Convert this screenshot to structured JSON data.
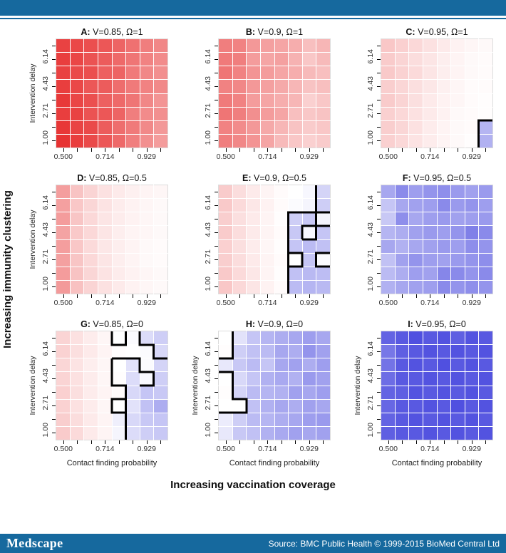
{
  "branding": {
    "logo": "Medscape",
    "source": "Source: BMC Public Health © 1999-2015 BioMed Central Ltd",
    "bar_color": "#16699E"
  },
  "figure": {
    "outer_y_label": "Increasing immunity clustering",
    "outer_x_label": "Increasing vaccination coverage",
    "y_axis_title": "Intervention delay",
    "x_axis_title": "Contact finding probability",
    "x_tick_labels": [
      "0.500",
      "0.714",
      "0.929"
    ],
    "y_tick_labels": [
      "1.00",
      "2.71",
      "4.43",
      "6.14"
    ],
    "pos_color": "#E62828",
    "neg_color": "#3C3CDC",
    "contour_color": "#000000"
  },
  "chart_data": {
    "type": "heatmap",
    "grid": "8x8 cells per panel",
    "x_values": [
      0.5,
      0.571,
      0.643,
      0.714,
      0.786,
      0.857,
      0.929,
      1.0
    ],
    "y_values": [
      1.0,
      1.86,
      2.71,
      3.57,
      4.43,
      5.29,
      6.14,
      7.0
    ],
    "value_legend": "positive = red (outbreak advantage), negative = blue; rows listed top (delay 7.00) to bottom (delay 1.00)",
    "panels": [
      {
        "id": "A",
        "title_prefix": "A:",
        "title_rest": " V=0.85, Ω=1",
        "V": 0.85,
        "omega": 1,
        "show_y_title": true,
        "show_x_title": false,
        "values": [
          [
            0.88,
            0.85,
            0.82,
            0.78,
            0.72,
            0.66,
            0.6,
            0.56
          ],
          [
            0.9,
            0.86,
            0.8,
            0.76,
            0.7,
            0.64,
            0.58,
            0.54
          ],
          [
            0.88,
            0.84,
            0.82,
            0.74,
            0.72,
            0.62,
            0.56,
            0.52
          ],
          [
            0.9,
            0.85,
            0.78,
            0.76,
            0.68,
            0.62,
            0.58,
            0.55
          ],
          [
            0.92,
            0.86,
            0.82,
            0.74,
            0.7,
            0.64,
            0.56,
            0.5
          ],
          [
            0.9,
            0.88,
            0.8,
            0.78,
            0.72,
            0.6,
            0.54,
            0.52
          ],
          [
            0.93,
            0.87,
            0.84,
            0.76,
            0.68,
            0.62,
            0.55,
            0.48
          ],
          [
            0.95,
            0.9,
            0.84,
            0.78,
            0.7,
            0.6,
            0.52,
            0.46
          ]
        ],
        "contours": []
      },
      {
        "id": "B",
        "title_prefix": "B:",
        "title_rest": " V=0.9, Ω=1",
        "V": 0.9,
        "omega": 1,
        "show_y_title": false,
        "show_x_title": false,
        "values": [
          [
            0.6,
            0.58,
            0.48,
            0.44,
            0.42,
            0.38,
            0.3,
            0.34
          ],
          [
            0.62,
            0.6,
            0.46,
            0.42,
            0.44,
            0.36,
            0.26,
            0.32
          ],
          [
            0.64,
            0.58,
            0.5,
            0.46,
            0.42,
            0.38,
            0.32,
            0.3
          ],
          [
            0.58,
            0.56,
            0.48,
            0.44,
            0.4,
            0.34,
            0.28,
            0.3
          ],
          [
            0.62,
            0.58,
            0.46,
            0.42,
            0.38,
            0.34,
            0.22,
            0.26
          ],
          [
            0.64,
            0.6,
            0.52,
            0.46,
            0.42,
            0.3,
            0.26,
            0.28
          ],
          [
            0.58,
            0.54,
            0.48,
            0.4,
            0.34,
            0.28,
            0.24,
            0.26
          ],
          [
            0.6,
            0.56,
            0.5,
            0.42,
            0.32,
            0.26,
            0.22,
            0.24
          ]
        ],
        "contours": []
      },
      {
        "id": "C",
        "title_prefix": "C:",
        "title_rest": " V=0.95, Ω=1",
        "V": 0.95,
        "omega": 1,
        "show_y_title": false,
        "show_x_title": false,
        "values": [
          [
            0.26,
            0.22,
            0.18,
            0.14,
            0.1,
            0.06,
            0.04,
            0.03
          ],
          [
            0.24,
            0.2,
            0.16,
            0.12,
            0.08,
            0.05,
            0.03,
            0.02
          ],
          [
            0.25,
            0.21,
            0.17,
            0.12,
            0.08,
            0.05,
            0.03,
            0.02
          ],
          [
            0.23,
            0.19,
            0.15,
            0.11,
            0.07,
            0.04,
            0.02,
            0.02
          ],
          [
            0.24,
            0.2,
            0.15,
            0.1,
            0.06,
            0.04,
            0.02,
            0.01
          ],
          [
            0.22,
            0.18,
            0.14,
            0.1,
            0.06,
            0.03,
            0.02,
            0.01
          ],
          [
            0.23,
            0.19,
            0.14,
            0.09,
            0.05,
            0.03,
            0.02,
            -0.38
          ],
          [
            0.22,
            0.18,
            0.13,
            0.09,
            0.05,
            0.03,
            0.01,
            -0.4
          ]
        ],
        "contours": [
          [
            [
              7,
              0
            ],
            [
              7,
              2
            ],
            [
              8,
              2
            ]
          ]
        ]
      },
      {
        "id": "D",
        "title_prefix": "D:",
        "title_rest": " V=0.85, Ω=0.5",
        "V": 0.85,
        "omega": 0.5,
        "show_y_title": true,
        "show_x_title": false,
        "values": [
          [
            0.45,
            0.28,
            0.2,
            0.14,
            0.1,
            0.07,
            0.05,
            0.04
          ],
          [
            0.44,
            0.26,
            0.19,
            0.13,
            0.09,
            0.06,
            0.04,
            0.03
          ],
          [
            0.46,
            0.27,
            0.18,
            0.12,
            0.09,
            0.06,
            0.04,
            0.03
          ],
          [
            0.43,
            0.25,
            0.18,
            0.12,
            0.08,
            0.05,
            0.04,
            0.03
          ],
          [
            0.45,
            0.26,
            0.17,
            0.11,
            0.08,
            0.05,
            0.03,
            0.02
          ],
          [
            0.44,
            0.27,
            0.18,
            0.12,
            0.08,
            0.05,
            0.03,
            0.02
          ],
          [
            0.46,
            0.28,
            0.19,
            0.13,
            0.09,
            0.06,
            0.04,
            0.03
          ],
          [
            0.47,
            0.29,
            0.2,
            0.14,
            0.1,
            0.06,
            0.04,
            0.03
          ]
        ],
        "contours": []
      },
      {
        "id": "E",
        "title_prefix": "E:",
        "title_rest": " V=0.9, Ω=0.5",
        "V": 0.9,
        "omega": 0.5,
        "show_y_title": false,
        "show_x_title": false,
        "values": [
          [
            0.24,
            0.16,
            0.1,
            0.05,
            0.02,
            0.0,
            -0.04,
            -0.22
          ],
          [
            0.25,
            0.17,
            0.11,
            0.06,
            0.02,
            -0.02,
            -0.05,
            -0.25
          ],
          [
            0.23,
            0.15,
            0.1,
            0.05,
            0.01,
            -0.25,
            -0.28,
            -0.05
          ],
          [
            0.24,
            0.16,
            0.1,
            0.05,
            0.02,
            -0.28,
            -0.04,
            -0.3
          ],
          [
            0.22,
            0.15,
            0.09,
            0.04,
            0.01,
            -0.3,
            -0.35,
            -0.32
          ],
          [
            0.23,
            0.16,
            0.1,
            0.05,
            0.02,
            0.0,
            -0.3,
            -0.02
          ],
          [
            0.25,
            0.17,
            0.11,
            0.05,
            0.01,
            -0.32,
            -0.36,
            -0.34
          ],
          [
            0.26,
            0.18,
            0.12,
            0.06,
            0.02,
            -0.35,
            -0.38,
            -0.36
          ]
        ],
        "contours": [
          [
            [
              7,
              8
            ],
            [
              7,
              6
            ],
            [
              8,
              6
            ]
          ],
          [
            [
              5,
              0
            ],
            [
              5,
              6
            ],
            [
              7,
              6
            ]
          ],
          [
            [
              6,
              4
            ],
            [
              6,
              5
            ],
            [
              7,
              5
            ],
            [
              7,
              4
            ],
            [
              6,
              4
            ]
          ],
          [
            [
              7,
              6
            ],
            [
              7,
              5
            ],
            [
              8,
              5
            ]
          ],
          [
            [
              5,
              3
            ],
            [
              6,
              3
            ],
            [
              6,
              2
            ],
            [
              5,
              2
            ]
          ],
          [
            [
              8,
              3
            ],
            [
              7,
              3
            ],
            [
              7,
              2
            ],
            [
              8,
              2
            ]
          ]
        ]
      },
      {
        "id": "F",
        "title_prefix": "F:",
        "title_rest": " V=0.95, Ω=0.5",
        "V": 0.95,
        "omega": 0.5,
        "show_y_title": false,
        "show_x_title": false,
        "values": [
          [
            -0.45,
            -0.6,
            -0.5,
            -0.55,
            -0.58,
            -0.52,
            -0.48,
            -0.52
          ],
          [
            -0.3,
            -0.45,
            -0.48,
            -0.5,
            -0.6,
            -0.52,
            -0.55,
            -0.5
          ],
          [
            -0.28,
            -0.58,
            -0.45,
            -0.5,
            -0.52,
            -0.48,
            -0.5,
            -0.52
          ],
          [
            -0.38,
            -0.42,
            -0.48,
            -0.52,
            -0.5,
            -0.55,
            -0.65,
            -0.6
          ],
          [
            -0.45,
            -0.4,
            -0.45,
            -0.48,
            -0.52,
            -0.5,
            -0.58,
            -0.55
          ],
          [
            -0.32,
            -0.48,
            -0.55,
            -0.5,
            -0.48,
            -0.52,
            -0.55,
            -0.58
          ],
          [
            -0.35,
            -0.42,
            -0.5,
            -0.48,
            -0.62,
            -0.6,
            -0.55,
            -0.6
          ],
          [
            -0.4,
            -0.45,
            -0.48,
            -0.5,
            -0.6,
            -0.55,
            -0.58,
            -0.55
          ]
        ],
        "contours": []
      },
      {
        "id": "G",
        "title_prefix": "G:",
        "title_rest": " V=0.85, Ω=0",
        "V": 0.85,
        "omega": 0,
        "show_y_title": true,
        "show_x_title": true,
        "values": [
          [
            0.2,
            0.14,
            0.09,
            0.04,
            0.0,
            -0.02,
            -0.18,
            -0.25
          ],
          [
            0.21,
            0.15,
            0.1,
            0.05,
            0.01,
            0.0,
            -0.02,
            -0.2
          ],
          [
            0.19,
            0.13,
            0.08,
            0.04,
            0.0,
            -0.15,
            -0.02,
            -0.22
          ],
          [
            0.2,
            0.14,
            0.09,
            0.04,
            0.01,
            -0.18,
            -0.03,
            -0.25
          ],
          [
            0.22,
            0.15,
            0.09,
            0.05,
            0.02,
            -0.2,
            -0.3,
            -0.28
          ],
          [
            0.21,
            0.14,
            0.09,
            0.04,
            0.0,
            -0.15,
            -0.32,
            -0.42
          ],
          [
            0.23,
            0.16,
            0.1,
            0.05,
            -0.08,
            -0.2,
            -0.28,
            -0.3
          ],
          [
            0.24,
            0.17,
            0.1,
            0.05,
            -0.05,
            -0.18,
            -0.25,
            -0.28
          ]
        ],
        "contours": [
          [
            [
              4,
              8
            ],
            [
              4,
              7
            ],
            [
              5,
              7
            ],
            [
              5,
              8
            ]
          ],
          [
            [
              6,
              8
            ],
            [
              6,
              7
            ],
            [
              7,
              7
            ],
            [
              7,
              6
            ],
            [
              8,
              6
            ]
          ],
          [
            [
              4,
              6
            ],
            [
              6,
              6
            ],
            [
              6,
              5
            ],
            [
              7,
              5
            ],
            [
              7,
              4
            ],
            [
              6,
              4
            ]
          ],
          [
            [
              4,
              6
            ],
            [
              4,
              4
            ],
            [
              5,
              4
            ],
            [
              5,
              0
            ]
          ],
          [
            [
              5,
              3
            ],
            [
              4,
              3
            ],
            [
              4,
              2
            ],
            [
              5,
              2
            ]
          ]
        ]
      },
      {
        "id": "H",
        "title_prefix": "H:",
        "title_rest": " V=0.9, Ω=0",
        "V": 0.9,
        "omega": 0,
        "show_y_title": true,
        "show_x_title": true,
        "values": [
          [
            0.0,
            -0.15,
            -0.3,
            -0.38,
            -0.42,
            -0.45,
            -0.5,
            -0.45
          ],
          [
            0.01,
            -0.25,
            -0.32,
            -0.35,
            -0.45,
            -0.42,
            -0.55,
            -0.48
          ],
          [
            -0.12,
            -0.28,
            -0.35,
            -0.3,
            -0.45,
            -0.48,
            -0.42,
            -0.5
          ],
          [
            0.0,
            -0.2,
            -0.3,
            -0.4,
            -0.44,
            -0.4,
            -0.52,
            -0.48
          ],
          [
            0.01,
            -0.22,
            -0.35,
            -0.38,
            -0.4,
            -0.48,
            -0.45,
            -0.5
          ],
          [
            0.0,
            0.0,
            -0.32,
            -0.4,
            -0.45,
            -0.42,
            -0.48,
            -0.45
          ],
          [
            -0.1,
            -0.25,
            -0.35,
            -0.38,
            -0.42,
            -0.45,
            -0.5,
            -0.52
          ],
          [
            -0.12,
            -0.28,
            -0.32,
            -0.4,
            -0.44,
            -0.48,
            -0.45,
            -0.48
          ]
        ],
        "contours": [
          [
            [
              1,
              8
            ],
            [
              1,
              6
            ],
            [
              0,
              6
            ]
          ],
          [
            [
              0,
              5
            ],
            [
              1,
              5
            ],
            [
              1,
              3
            ],
            [
              2,
              3
            ],
            [
              2,
              2
            ],
            [
              0,
              2
            ]
          ]
        ]
      },
      {
        "id": "I",
        "title_prefix": "I:",
        "title_rest": " V=0.95, Ω=0",
        "V": 0.95,
        "omega": 0,
        "show_y_title": true,
        "show_x_title": true,
        "values": [
          [
            -0.8,
            -0.85,
            -0.9,
            -0.85,
            -0.88,
            -0.82,
            -0.88,
            -0.85
          ],
          [
            -0.7,
            -0.82,
            -0.85,
            -0.88,
            -0.85,
            -0.88,
            -0.85,
            -0.88
          ],
          [
            -0.72,
            -0.85,
            -0.88,
            -0.85,
            -0.9,
            -0.85,
            -0.88,
            -0.85
          ],
          [
            -0.75,
            -0.85,
            -0.85,
            -0.88,
            -0.85,
            -0.88,
            -0.85,
            -0.88
          ],
          [
            -0.8,
            -0.82,
            -0.88,
            -0.85,
            -0.88,
            -0.85,
            -0.88,
            -0.85
          ],
          [
            -0.78,
            -0.85,
            -0.85,
            -0.88,
            -0.85,
            -0.9,
            -0.85,
            -0.88
          ],
          [
            -0.8,
            -0.85,
            -0.88,
            -0.85,
            -0.88,
            -0.85,
            -0.88,
            -0.85
          ],
          [
            -0.82,
            -0.85,
            -0.85,
            -0.88,
            -0.85,
            -0.88,
            -0.85,
            -0.88
          ]
        ],
        "contours": []
      }
    ]
  }
}
